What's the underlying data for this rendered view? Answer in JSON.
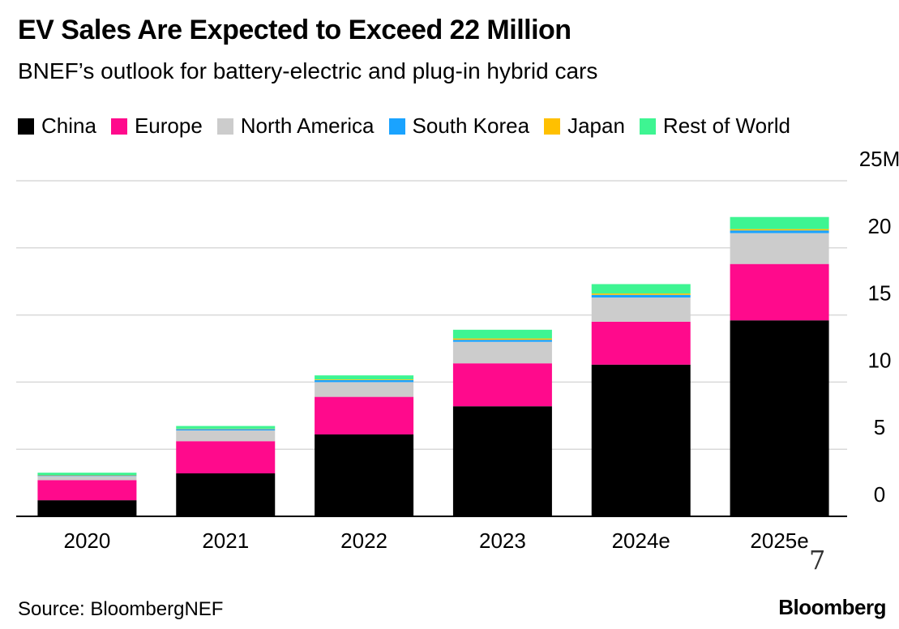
{
  "chart_data": {
    "type": "bar",
    "stacked": true,
    "title": "EV Sales Are Expected to Exceed 22 Million",
    "subtitle": "BNEF’s outlook for battery-electric and plug-in hybrid cars",
    "categories": [
      "2020",
      "2021",
      "2022",
      "2023",
      "2024e",
      "2025e"
    ],
    "series": [
      {
        "name": "China",
        "color": "#000000",
        "values": [
          1.2,
          3.2,
          6.1,
          8.2,
          11.3,
          14.6
        ]
      },
      {
        "name": "Europe",
        "color": "#ff0a8c",
        "values": [
          1.5,
          2.4,
          2.8,
          3.2,
          3.2,
          4.2
        ]
      },
      {
        "name": "North America",
        "color": "#cccccc",
        "values": [
          0.3,
          0.8,
          1.1,
          1.6,
          1.8,
          2.3
        ]
      },
      {
        "name": "South Korea",
        "color": "#1aa3ff",
        "values": [
          0.05,
          0.1,
          0.15,
          0.15,
          0.2,
          0.2
        ]
      },
      {
        "name": "Japan",
        "color": "#ffc000",
        "values": [
          0.03,
          0.03,
          0.05,
          0.1,
          0.1,
          0.1
        ]
      },
      {
        "name": "Rest of World",
        "color": "#3ef592",
        "values": [
          0.17,
          0.2,
          0.3,
          0.65,
          0.7,
          0.9
        ]
      }
    ],
    "y_ticks": [
      "0",
      "5",
      "10",
      "15",
      "20",
      "25M"
    ],
    "y_tick_values": [
      0,
      5,
      10,
      15,
      20,
      25
    ],
    "ylim": [
      0,
      25
    ],
    "y_axis_side": "right",
    "grid": true,
    "legend_placement": "top-left"
  },
  "source": "Source: BloombergNEF",
  "brand": "Bloomberg",
  "corner_mark": "7"
}
